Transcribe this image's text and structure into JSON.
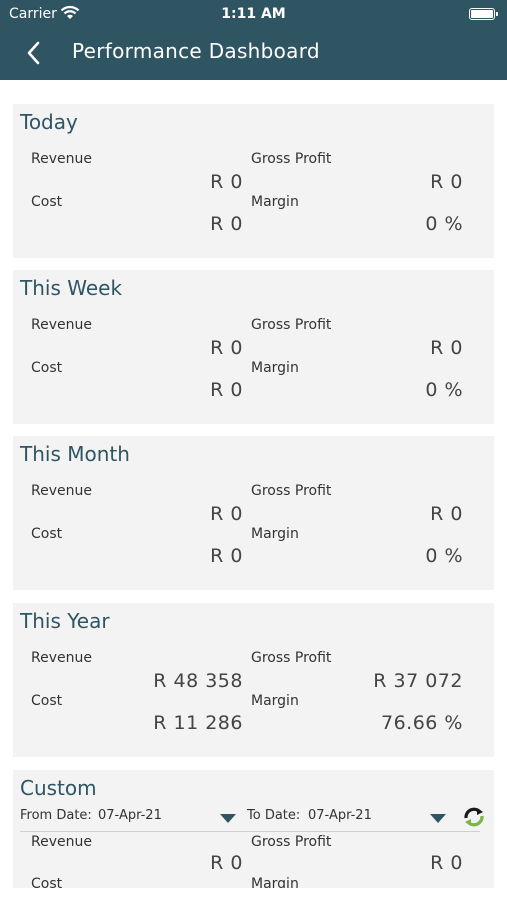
{
  "status_bar": {
    "carrier": "Carrier",
    "time": "1:11 AM"
  },
  "nav": {
    "title": "Performance Dashboard"
  },
  "labels": {
    "revenue": "Revenue",
    "gross_profit": "Gross Profit",
    "cost": "Cost",
    "margin": "Margin"
  },
  "cards": [
    {
      "heading": "Today",
      "revenue": "R 0",
      "gross_profit": "R 0",
      "cost": "R 0",
      "margin": "0 %"
    },
    {
      "heading": "This Week",
      "revenue": "R 0",
      "gross_profit": "R 0",
      "cost": "R 0",
      "margin": "0 %"
    },
    {
      "heading": "This Month",
      "revenue": "R 0",
      "gross_profit": "R 0",
      "cost": "R 0",
      "margin": "0 %"
    },
    {
      "heading": "This Year",
      "revenue": "R 48 358",
      "gross_profit": "R 37 072",
      "cost": "R 11 286",
      "margin": "76.66 %"
    }
  ],
  "custom": {
    "heading": "Custom",
    "from_label": "From Date:",
    "from_value": "07-Apr-21",
    "to_label": "To Date:",
    "to_value": "07-Apr-21",
    "revenue": "R 0",
    "gross_profit": "R 0",
    "colors": {
      "refresh_dark": "#1a1a1a",
      "refresh_green": "#7ab648"
    }
  },
  "colors": {
    "nav_bg": "#2f5563",
    "card_bg": "#f3f3f3",
    "heading": "#2f5563"
  }
}
